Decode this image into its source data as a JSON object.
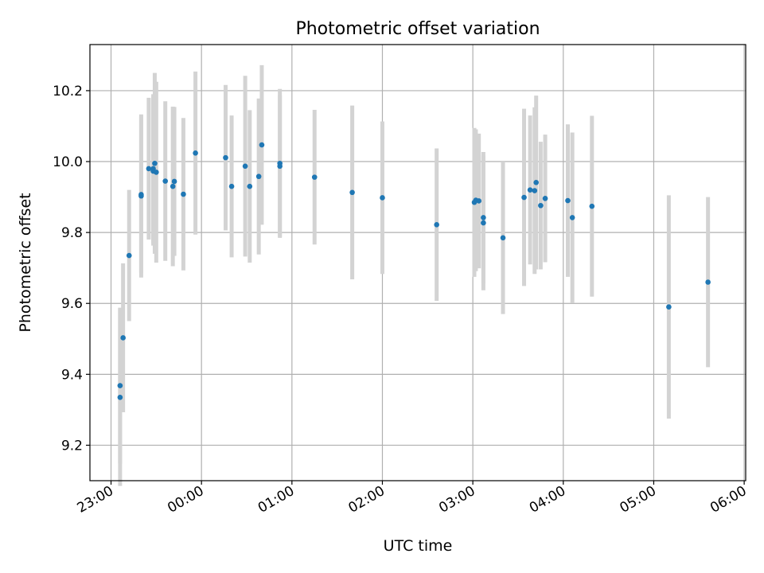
{
  "chart_data": {
    "type": "scatter",
    "title": "Photometric offset variation",
    "xlabel": "UTC time",
    "ylabel": "Photometric offset",
    "x_axis": "time",
    "x_ticks": [
      "23:00",
      "00:00",
      "01:00",
      "02:00",
      "03:00",
      "04:00",
      "05:00",
      "06:00"
    ],
    "y_ticks": [
      "9.2",
      "9.4",
      "9.6",
      "9.8",
      "10.0",
      "10.2"
    ],
    "xlim": [
      "22:46",
      "06:01"
    ],
    "ylim": [
      9.1,
      10.33
    ],
    "grid": true,
    "marker_color": "#1f77b4",
    "errorbar_color": "#d3d3d3",
    "x": [
      "23:06",
      "23:06",
      "23:08",
      "23:12",
      "23:20",
      "23:20",
      "23:25",
      "23:28",
      "23:28",
      "23:29",
      "23:30",
      "23:36",
      "23:41",
      "23:42",
      "23:48",
      "23:56",
      "00:16",
      "00:20",
      "00:29",
      "00:32",
      "00:38",
      "00:40",
      "00:52",
      "00:52",
      "01:15",
      "01:40",
      "02:00",
      "02:36",
      "03:01",
      "03:02",
      "03:04",
      "03:07",
      "03:07",
      "03:20",
      "03:34",
      "03:38",
      "03:41",
      "03:42",
      "03:45",
      "03:48",
      "04:03",
      "04:06",
      "04:19",
      "05:10",
      "05:36"
    ],
    "y": [
      9.335,
      9.368,
      9.503,
      9.735,
      9.903,
      9.907,
      9.98,
      9.973,
      9.98,
      9.995,
      9.97,
      9.945,
      9.93,
      9.944,
      9.908,
      10.024,
      10.011,
      9.93,
      9.987,
      9.93,
      9.958,
      10.047,
      9.995,
      9.987,
      9.956,
      9.913,
      9.898,
      9.822,
      9.885,
      9.891,
      9.889,
      9.842,
      9.827,
      9.785,
      9.899,
      9.92,
      9.918,
      9.941,
      9.876,
      9.896,
      9.89,
      9.842,
      9.874,
      9.59,
      9.66
    ],
    "yerr": [
      0.25,
      0.22,
      0.21,
      0.185,
      0.23,
      0.22,
      0.2,
      0.21,
      0.21,
      0.255,
      0.255,
      0.225,
      0.225,
      0.21,
      0.215,
      0.23,
      0.205,
      0.2,
      0.255,
      0.215,
      0.22,
      0.225,
      0.21,
      0.2,
      0.19,
      0.245,
      0.215,
      0.215,
      0.21,
      0.2,
      0.19,
      0.185,
      0.19,
      0.215,
      0.25,
      0.21,
      0.235,
      0.245,
      0.18,
      0.18,
      0.215,
      0.24,
      0.255,
      0.315,
      0.24
    ]
  }
}
